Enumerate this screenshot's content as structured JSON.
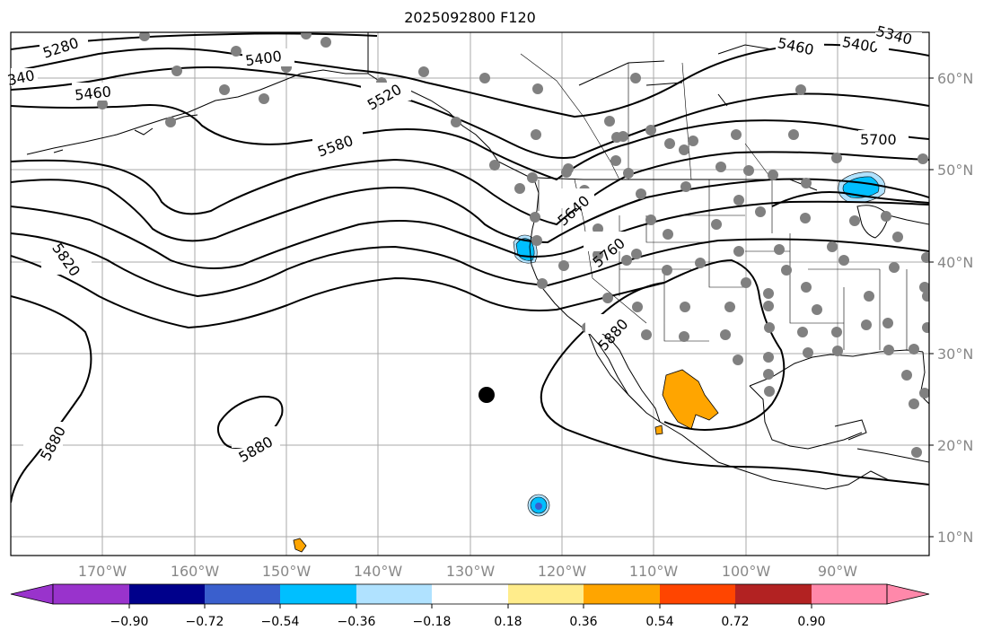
{
  "title": "2025092800 F120",
  "lat_labels": [
    "60°N",
    "50°N",
    "40°N",
    "30°N",
    "20°N",
    "10°N"
  ],
  "lon_labels": [
    "170°W",
    "160°W",
    "150°W",
    "140°W",
    "130°W",
    "120°W",
    "110°W",
    "100°W",
    "90°W"
  ],
  "contour_labels": [
    "5280",
    "5400",
    "5460",
    "5520",
    "5580",
    "5640",
    "5760",
    "5820",
    "5880",
    "5880",
    "5880",
    "5700",
    "5460",
    "5400",
    "5340",
    "340"
  ],
  "colorbar": {
    "tick_labels": [
      "−0.90",
      "−0.72",
      "−0.54",
      "−0.36",
      "−0.18",
      "0.18",
      "0.36",
      "0.54",
      "0.72",
      "0.90"
    ],
    "colors": [
      "#9933cc",
      "#00008b",
      "#3a5fcd",
      "#00bfff",
      "#b0e2ff",
      "#ffffff",
      "#ffec8b",
      "#ffa500",
      "#ff4500",
      "#b22222",
      "#ff88aa"
    ]
  },
  "colors": {
    "grid": "#aaaaaa",
    "station": "#808080",
    "contour": "#000000"
  }
}
